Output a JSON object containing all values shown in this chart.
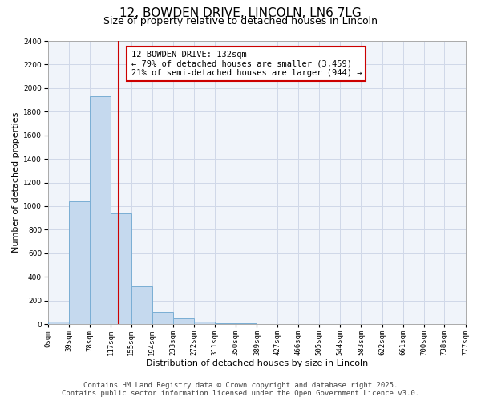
{
  "title": "12, BOWDEN DRIVE, LINCOLN, LN6 7LG",
  "subtitle": "Size of property relative to detached houses in Lincoln",
  "xlabel": "Distribution of detached houses by size in Lincoln",
  "ylabel": "Number of detached properties",
  "bar_values": [
    20,
    1040,
    1930,
    940,
    320,
    100,
    50,
    20,
    10,
    5,
    0,
    0,
    0,
    0,
    0,
    0,
    0,
    0,
    0,
    0
  ],
  "bin_edges": [
    0,
    39,
    78,
    117,
    155,
    194,
    233,
    272,
    311,
    350,
    389,
    427,
    466,
    505,
    544,
    583,
    622,
    661,
    700,
    738,
    777
  ],
  "tick_labels": [
    "0sqm",
    "39sqm",
    "78sqm",
    "117sqm",
    "155sqm",
    "194sqm",
    "233sqm",
    "272sqm",
    "311sqm",
    "350sqm",
    "389sqm",
    "427sqm",
    "466sqm",
    "505sqm",
    "544sqm",
    "583sqm",
    "622sqm",
    "661sqm",
    "700sqm",
    "738sqm",
    "777sqm"
  ],
  "bar_color": "#c5d9ee",
  "bar_edge_color": "#7aaed4",
  "vline_x": 132,
  "vline_color": "#cc0000",
  "annotation_text": "12 BOWDEN DRIVE: 132sqm\n← 79% of detached houses are smaller (3,459)\n21% of semi-detached houses are larger (944) →",
  "annotation_box_color": "#ffffff",
  "annotation_box_edge": "#cc0000",
  "ylim": [
    0,
    2400
  ],
  "yticks": [
    0,
    200,
    400,
    600,
    800,
    1000,
    1200,
    1400,
    1600,
    1800,
    2000,
    2200,
    2400
  ],
  "background_color": "#ffffff",
  "plot_bg_color": "#f0f4fa",
  "grid_color": "#d0d8e8",
  "footer_line1": "Contains HM Land Registry data © Crown copyright and database right 2025.",
  "footer_line2": "Contains public sector information licensed under the Open Government Licence v3.0.",
  "title_fontsize": 11,
  "subtitle_fontsize": 9,
  "tick_fontsize": 6.5,
  "ylabel_fontsize": 8,
  "xlabel_fontsize": 8,
  "annotation_fontsize": 7.5,
  "footer_fontsize": 6.5
}
